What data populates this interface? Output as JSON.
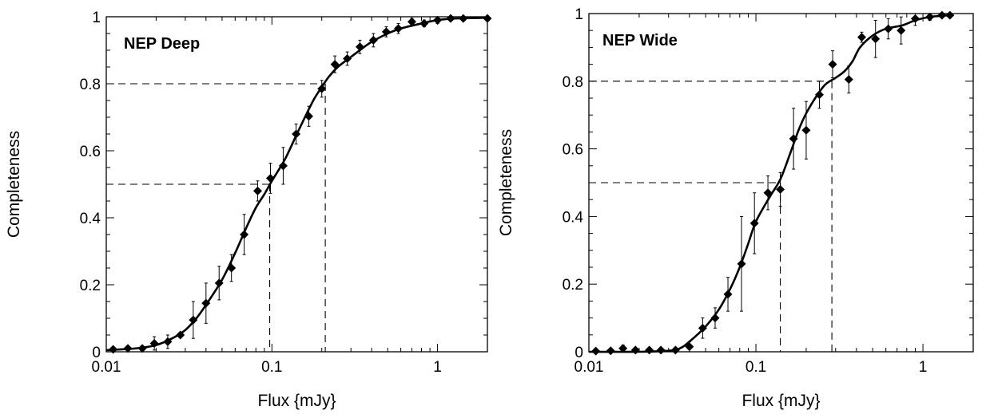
{
  "chart_data": [
    {
      "type": "scatter",
      "title": "NEP Deep",
      "xlabel": "Flux  {mJy}",
      "ylabel": "Completeness",
      "xscale": "log",
      "xlim": [
        0.01,
        2
      ],
      "ylim": [
        0,
        1
      ],
      "xticks": [
        {
          "value": 0.01,
          "label": "0.01"
        },
        {
          "value": 0.1,
          "label": "0.1"
        },
        {
          "value": 1,
          "label": "1"
        }
      ],
      "yticks": [
        {
          "value": 0,
          "label": "0"
        },
        {
          "value": 0.2,
          "label": "0.2"
        },
        {
          "value": 0.4,
          "label": "0.4"
        },
        {
          "value": 0.6,
          "label": "0.6"
        },
        {
          "value": 0.8,
          "label": "0.8"
        },
        {
          "value": 1,
          "label": "1"
        }
      ],
      "points": [
        {
          "x": 0.011,
          "y": 0.007,
          "err": 0.0
        },
        {
          "x": 0.0135,
          "y": 0.01,
          "err": 0.0
        },
        {
          "x": 0.0165,
          "y": 0.01,
          "err": 0.0
        },
        {
          "x": 0.0195,
          "y": 0.025,
          "err": 0.02
        },
        {
          "x": 0.0235,
          "y": 0.03,
          "err": 0.02
        },
        {
          "x": 0.028,
          "y": 0.05,
          "err": 0.0
        },
        {
          "x": 0.0335,
          "y": 0.095,
          "err": 0.055
        },
        {
          "x": 0.04,
          "y": 0.145,
          "err": 0.06
        },
        {
          "x": 0.048,
          "y": 0.205,
          "err": 0.05
        },
        {
          "x": 0.057,
          "y": 0.25,
          "err": 0.04
        },
        {
          "x": 0.068,
          "y": 0.35,
          "err": 0.06
        },
        {
          "x": 0.082,
          "y": 0.48,
          "err": 0.03
        },
        {
          "x": 0.098,
          "y": 0.518,
          "err": 0.045
        },
        {
          "x": 0.117,
          "y": 0.555,
          "err": 0.055
        },
        {
          "x": 0.14,
          "y": 0.65,
          "err": 0.03
        },
        {
          "x": 0.167,
          "y": 0.703,
          "err": 0.03
        },
        {
          "x": 0.2,
          "y": 0.785,
          "err": 0.025
        },
        {
          "x": 0.24,
          "y": 0.858,
          "err": 0.025
        },
        {
          "x": 0.285,
          "y": 0.875,
          "err": 0.02
        },
        {
          "x": 0.34,
          "y": 0.91,
          "err": 0.02
        },
        {
          "x": 0.41,
          "y": 0.93,
          "err": 0.02
        },
        {
          "x": 0.49,
          "y": 0.955,
          "err": 0.015
        },
        {
          "x": 0.58,
          "y": 0.965,
          "err": 0.015
        },
        {
          "x": 0.7,
          "y": 0.985,
          "err": 0.01
        },
        {
          "x": 0.83,
          "y": 0.98,
          "err": 0.01
        },
        {
          "x": 1.0,
          "y": 0.99,
          "err": 0.01
        },
        {
          "x": 1.2,
          "y": 0.995,
          "err": 0.005
        },
        {
          "x": 1.43,
          "y": 0.995,
          "err": 0.005
        },
        {
          "x": 2.0,
          "y": 0.995,
          "err": 0.0
        }
      ],
      "fit_curve": [
        [
          0.01,
          0.005
        ],
        [
          0.015,
          0.01
        ],
        [
          0.02,
          0.02
        ],
        [
          0.025,
          0.04
        ],
        [
          0.03,
          0.065
        ],
        [
          0.035,
          0.1
        ],
        [
          0.04,
          0.14
        ],
        [
          0.05,
          0.215
        ],
        [
          0.06,
          0.295
        ],
        [
          0.07,
          0.37
        ],
        [
          0.08,
          0.43
        ],
        [
          0.09,
          0.47
        ],
        [
          0.1,
          0.51
        ],
        [
          0.12,
          0.575
        ],
        [
          0.14,
          0.645
        ],
        [
          0.16,
          0.705
        ],
        [
          0.18,
          0.755
        ],
        [
          0.2,
          0.79
        ],
        [
          0.22,
          0.82
        ],
        [
          0.25,
          0.85
        ],
        [
          0.3,
          0.88
        ],
        [
          0.35,
          0.905
        ],
        [
          0.4,
          0.925
        ],
        [
          0.5,
          0.95
        ],
        [
          0.6,
          0.965
        ],
        [
          0.8,
          0.98
        ],
        [
          1.0,
          0.99
        ],
        [
          1.3,
          0.995
        ],
        [
          2.0,
          0.997
        ]
      ],
      "reference_lines": [
        {
          "y": 0.5,
          "x": 0.097
        },
        {
          "y": 0.8,
          "x": 0.21
        }
      ]
    },
    {
      "type": "scatter",
      "title": "NEP Wide",
      "xlabel": "Flux  {mJy}",
      "ylabel": "Completeness",
      "xscale": "log",
      "xlim": [
        0.01,
        2
      ],
      "ylim": [
        0,
        1
      ],
      "xticks": [
        {
          "value": 0.01,
          "label": "0.01"
        },
        {
          "value": 0.1,
          "label": "0.1"
        },
        {
          "value": 1,
          "label": "1"
        }
      ],
      "yticks": [
        {
          "value": 0,
          "label": "0"
        },
        {
          "value": 0.2,
          "label": "0.2"
        },
        {
          "value": 0.4,
          "label": "0.4"
        },
        {
          "value": 0.6,
          "label": "0.6"
        },
        {
          "value": 0.8,
          "label": "0.8"
        },
        {
          "value": 1,
          "label": "1"
        }
      ],
      "points": [
        {
          "x": 0.011,
          "y": 0.002,
          "err": 0.0
        },
        {
          "x": 0.0135,
          "y": 0.003,
          "err": 0.0
        },
        {
          "x": 0.016,
          "y": 0.01,
          "err": 0.01
        },
        {
          "x": 0.019,
          "y": 0.005,
          "err": 0.0
        },
        {
          "x": 0.023,
          "y": 0.005,
          "err": 0.0
        },
        {
          "x": 0.027,
          "y": 0.005,
          "err": 0.0
        },
        {
          "x": 0.033,
          "y": 0.005,
          "err": 0.0
        },
        {
          "x": 0.04,
          "y": 0.015,
          "err": 0.015
        },
        {
          "x": 0.048,
          "y": 0.07,
          "err": 0.03
        },
        {
          "x": 0.057,
          "y": 0.1,
          "err": 0.03
        },
        {
          "x": 0.068,
          "y": 0.17,
          "err": 0.05
        },
        {
          "x": 0.082,
          "y": 0.26,
          "err": 0.14
        },
        {
          "x": 0.098,
          "y": 0.38,
          "err": 0.09
        },
        {
          "x": 0.118,
          "y": 0.47,
          "err": 0.05
        },
        {
          "x": 0.14,
          "y": 0.48,
          "err": 0.05
        },
        {
          "x": 0.168,
          "y": 0.63,
          "err": 0.09
        },
        {
          "x": 0.2,
          "y": 0.655,
          "err": 0.085
        },
        {
          "x": 0.24,
          "y": 0.76,
          "err": 0.04
        },
        {
          "x": 0.288,
          "y": 0.85,
          "err": 0.04
        },
        {
          "x": 0.36,
          "y": 0.805,
          "err": 0.04
        },
        {
          "x": 0.43,
          "y": 0.93,
          "err": 0.015
        },
        {
          "x": 0.52,
          "y": 0.925,
          "err": 0.055
        },
        {
          "x": 0.62,
          "y": 0.955,
          "err": 0.03
        },
        {
          "x": 0.74,
          "y": 0.95,
          "err": 0.04
        },
        {
          "x": 0.9,
          "y": 0.985,
          "err": 0.02
        },
        {
          "x": 1.1,
          "y": 0.99,
          "err": 0.01
        },
        {
          "x": 1.3,
          "y": 0.995,
          "err": 0.005
        },
        {
          "x": 1.45,
          "y": 0.995,
          "err": 0.005
        }
      ],
      "fit_curve": [
        [
          0.01,
          0.0
        ],
        [
          0.02,
          0.0
        ],
        [
          0.03,
          0.003
        ],
        [
          0.035,
          0.01
        ],
        [
          0.04,
          0.03
        ],
        [
          0.05,
          0.075
        ],
        [
          0.06,
          0.125
        ],
        [
          0.07,
          0.185
        ],
        [
          0.08,
          0.25
        ],
        [
          0.09,
          0.32
        ],
        [
          0.1,
          0.385
        ],
        [
          0.12,
          0.455
        ],
        [
          0.14,
          0.51
        ],
        [
          0.16,
          0.585
        ],
        [
          0.18,
          0.655
        ],
        [
          0.2,
          0.705
        ],
        [
          0.23,
          0.755
        ],
        [
          0.26,
          0.79
        ],
        [
          0.3,
          0.81
        ],
        [
          0.34,
          0.83
        ],
        [
          0.38,
          0.86
        ],
        [
          0.42,
          0.9
        ],
        [
          0.5,
          0.935
        ],
        [
          0.6,
          0.955
        ],
        [
          0.75,
          0.965
        ],
        [
          0.9,
          0.98
        ],
        [
          1.1,
          0.99
        ],
        [
          1.45,
          0.995
        ]
      ],
      "reference_lines": [
        {
          "y": 0.5,
          "x": 0.14
        },
        {
          "y": 0.8,
          "x": 0.285
        }
      ]
    }
  ]
}
